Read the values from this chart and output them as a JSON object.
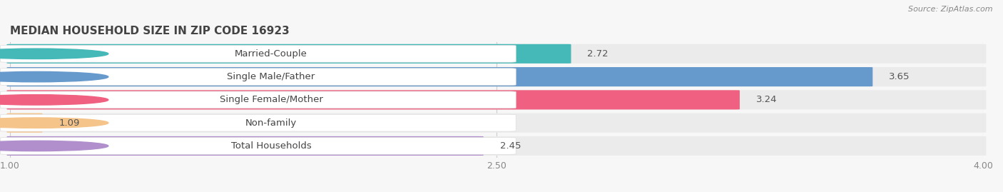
{
  "title": "MEDIAN HOUSEHOLD SIZE IN ZIP CODE 16923",
  "source": "Source: ZipAtlas.com",
  "categories": [
    "Married-Couple",
    "Single Male/Father",
    "Single Female/Mother",
    "Non-family",
    "Total Households"
  ],
  "values": [
    2.72,
    3.65,
    3.24,
    1.09,
    2.45
  ],
  "bar_colors": [
    "#45b8b8",
    "#6699cc",
    "#f06080",
    "#f5c48a",
    "#b08fcc"
  ],
  "xmin": 1.0,
  "xmax": 4.0,
  "xticks": [
    1.0,
    2.5,
    4.0
  ],
  "bg_color": "#f7f7f7",
  "row_bg_color": "#ebebeb",
  "title_fontsize": 11,
  "label_fontsize": 9.5,
  "value_fontsize": 9.5,
  "source_fontsize": 8
}
